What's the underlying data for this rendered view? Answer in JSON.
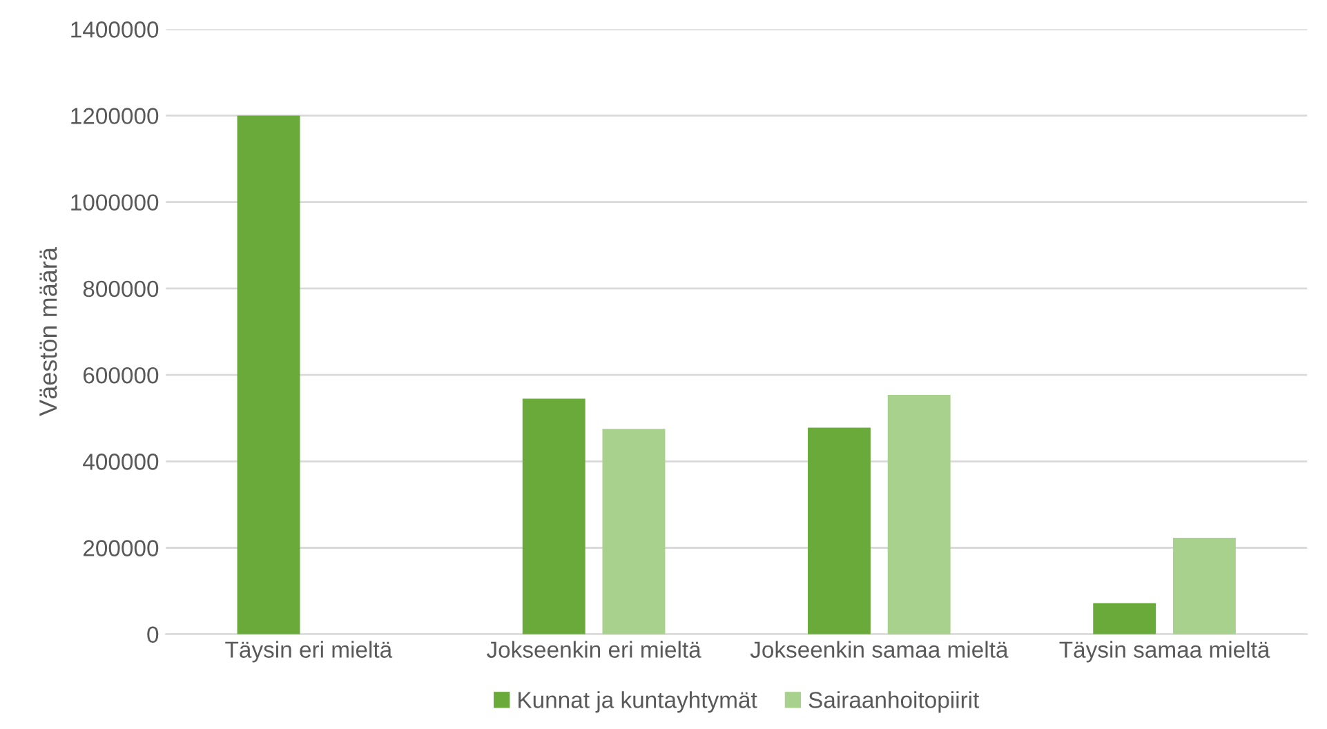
{
  "chart_data": {
    "type": "bar",
    "ylabel": "Väestön määrä",
    "categories": [
      "Täysin eri mieltä",
      "Jokseenkin eri mieltä",
      "Jokseenkin samaa mieltä",
      "Täysin samaa mieltä"
    ],
    "series": [
      {
        "name": "Kunnat ja kuntayhtymät",
        "color": "#6aaa3a",
        "values": [
          1200000,
          545000,
          478000,
          72000
        ]
      },
      {
        "name": "Sairaanhoitopiirit",
        "color": "#a9d18e",
        "values": [
          0,
          475000,
          554000,
          223000
        ]
      }
    ],
    "ylim": [
      0,
      1400000
    ],
    "yticks": [
      0,
      200000,
      400000,
      600000,
      800000,
      1000000,
      1200000,
      1400000
    ],
    "grid": "y",
    "legend": "bottom"
  }
}
